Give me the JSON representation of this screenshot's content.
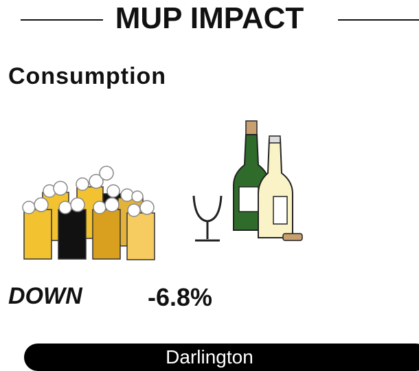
{
  "header": {
    "title": "MUP IMPACT"
  },
  "section": {
    "heading": "Consumption",
    "direction": "DOWN",
    "change": "-6.8%"
  },
  "footer": {
    "location": "Darlington"
  }
}
